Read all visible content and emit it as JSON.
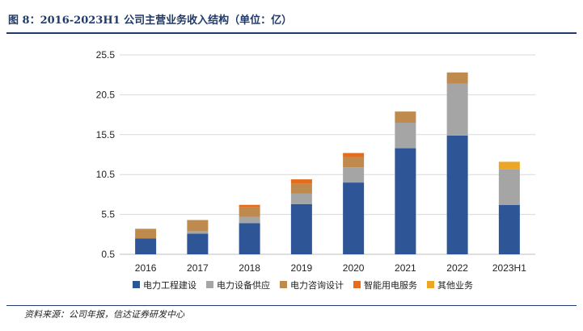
{
  "title": "图 8：2016-2023H1 公司主营业务收入结构（单位：亿）",
  "source": "资料来源：公司年报，信达证券研发中心",
  "chart_data": {
    "type": "bar",
    "stacked": true,
    "categories": [
      "2016",
      "2017",
      "2018",
      "2019",
      "2020",
      "2021",
      "2022",
      "2023H1"
    ],
    "yticks": [
      "0.5",
      "5.5",
      "10.5",
      "15.5",
      "20.5",
      "25.5"
    ],
    "ylim": [
      0.5,
      25.5
    ],
    "grid": true,
    "legend_position": "bottom",
    "series": [
      {
        "name": "电力工程建设",
        "color": "#2e5596",
        "values": [
          2.5,
          3.1,
          4.4,
          6.8,
          9.5,
          13.8,
          15.4,
          6.7
        ]
      },
      {
        "name": "电力设备供应",
        "color": "#a5a5a5",
        "values": [
          0.0,
          0.3,
          0.8,
          1.3,
          1.9,
          3.2,
          6.5,
          4.5
        ]
      },
      {
        "name": "电力咨询设计",
        "color": "#bf8a4e",
        "values": [
          1.2,
          1.4,
          1.2,
          1.3,
          1.3,
          1.4,
          1.4,
          0.0
        ]
      },
      {
        "name": "智能用电服务",
        "color": "#e46c1b",
        "values": [
          0.0,
          0.0,
          0.3,
          0.5,
          0.5,
          0.0,
          0.0,
          0.0
        ]
      },
      {
        "name": "其他业务",
        "color": "#eaa624",
        "values": [
          0.0,
          0.0,
          0.0,
          0.0,
          0.0,
          0.0,
          0.0,
          0.9
        ]
      }
    ]
  }
}
